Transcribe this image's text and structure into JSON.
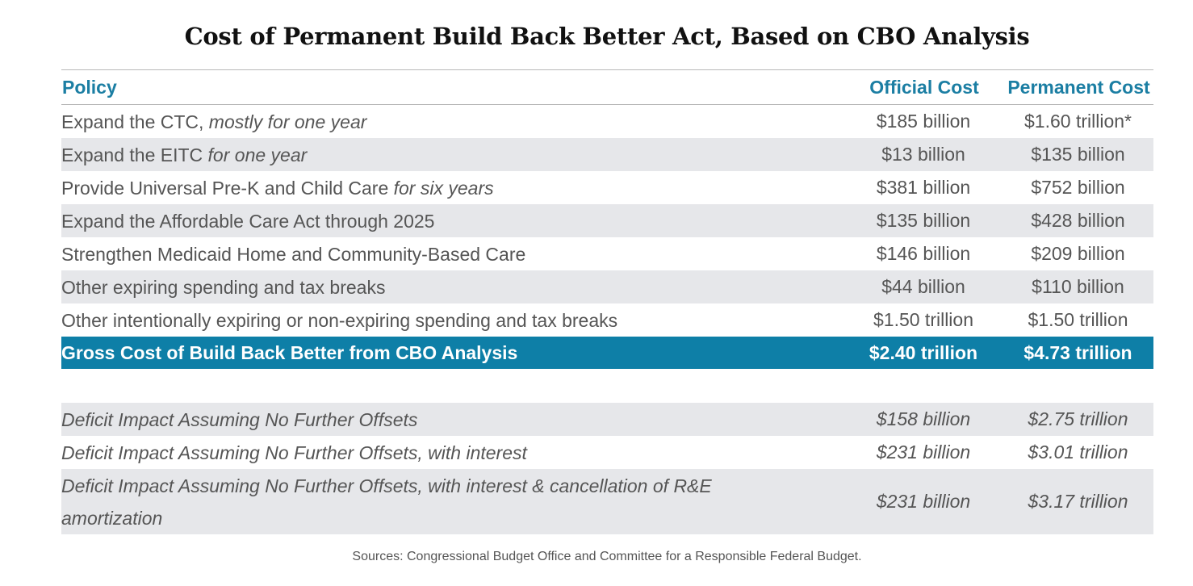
{
  "title": "Cost of Permanent Build Back Better Act, Based on CBO Analysis",
  "headers": {
    "policy": "Policy",
    "official": "Official Cost",
    "permanent": "Permanent Cost"
  },
  "rows": [
    {
      "policy": "Expand the CTC,",
      "policy_italic": " mostly for one year",
      "official": "$185 billion",
      "permanent": "$1.60 trillion*"
    },
    {
      "policy": "Expand the EITC",
      "policy_italic": " for one year",
      "official": "$13 billion",
      "permanent": "$135 billion"
    },
    {
      "policy": "Provide Universal Pre-K and Child Care",
      "policy_italic": " for six years",
      "official": "$381 billion",
      "permanent": "$752 billion"
    },
    {
      "policy": "Expand the Affordable Care Act through 2025",
      "policy_italic": "",
      "official": "$135 billion",
      "permanent": "$428 billion"
    },
    {
      "policy": "Strengthen Medicaid Home and Community-Based Care",
      "policy_italic": "",
      "official": "$146 billion",
      "permanent": "$209 billion"
    },
    {
      "policy": "Other expiring spending and tax breaks",
      "policy_italic": "",
      "official": "$44 billion",
      "permanent": "$110 billion"
    },
    {
      "policy": "Other intentionally expiring or non-expiring spending and tax breaks",
      "policy_italic": "",
      "official": "$1.50 trillion",
      "permanent": "$1.50 trillion"
    }
  ],
  "total": {
    "policy": "Gross Cost of Build Back Better from CBO Analysis",
    "official": "$2.40 trillion",
    "permanent": "$4.73 trillion"
  },
  "deficit_rows": [
    {
      "policy": "Deficit Impact Assuming No Further Offsets",
      "official": "$158 billion",
      "permanent": "$2.75 trillion"
    },
    {
      "policy": "Deficit Impact Assuming No Further Offsets, with interest",
      "official": "$231 billion",
      "permanent": "$3.01 trillion"
    },
    {
      "policy_line1": "Deficit Impact Assuming No Further Offsets, with interest & cancellation of R&E",
      "policy_line2": "amortization",
      "official": "$231 billion",
      "permanent": "$3.17 trillion"
    }
  ],
  "sources": "Sources: Congressional Budget Office and Committee for a Responsible Federal Budget."
}
